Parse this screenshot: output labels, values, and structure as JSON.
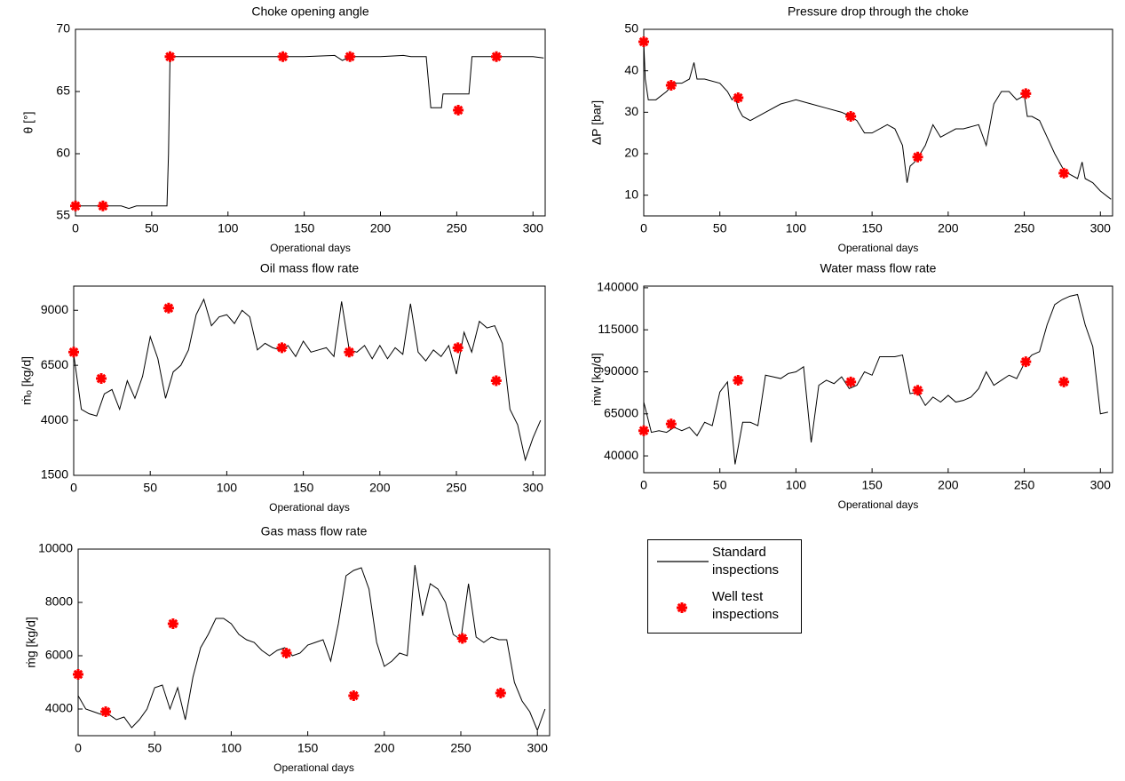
{
  "chart_data": [
    {
      "type": "line",
      "title": "Choke opening angle",
      "xlabel": "Operational days",
      "ylabel": "θ [°]",
      "xlim": [
        0,
        308
      ],
      "xticks": [
        0,
        50,
        100,
        150,
        200,
        250,
        300
      ],
      "ylim": [
        55,
        70
      ],
      "yticks": [
        55,
        60,
        65,
        70
      ],
      "grid": false,
      "series": [
        {
          "name": "Standard inspections",
          "type": "line",
          "color": "#000000",
          "x": [
            0,
            30,
            35,
            40,
            60,
            61,
            62,
            100,
            150,
            170,
            175,
            180,
            200,
            215,
            220,
            230,
            233,
            240,
            241,
            250,
            258,
            260,
            300,
            307
          ],
          "values": [
            55.8,
            55.8,
            55.6,
            55.8,
            55.8,
            60,
            67.8,
            67.8,
            67.8,
            67.9,
            67.5,
            67.8,
            67.8,
            67.9,
            67.8,
            67.8,
            63.7,
            63.7,
            64.8,
            64.8,
            64.8,
            67.8,
            67.8,
            67.7
          ]
        },
        {
          "name": "Well test inspections",
          "type": "scatter",
          "color": "#ff0000",
          "x": [
            0,
            18,
            62,
            136,
            180,
            251,
            276
          ],
          "values": [
            55.8,
            55.8,
            67.8,
            67.8,
            67.8,
            63.5,
            67.8
          ]
        }
      ]
    },
    {
      "type": "line",
      "title": "Pressure drop through the choke",
      "xlabel": "Operational days",
      "ylabel": "ΔP [bar]",
      "xlim": [
        0,
        308
      ],
      "xticks": [
        0,
        50,
        100,
        150,
        200,
        250,
        300
      ],
      "ylim": [
        5,
        50
      ],
      "yticks": [
        10,
        20,
        30,
        40,
        50
      ],
      "grid": false,
      "series": [
        {
          "name": "Standard inspections",
          "type": "line",
          "color": "#000000",
          "x": [
            0,
            1,
            3,
            8,
            15,
            20,
            25,
            30,
            33,
            35,
            40,
            50,
            55,
            58,
            60,
            62,
            65,
            70,
            80,
            90,
            100,
            110,
            120,
            130,
            136,
            140,
            145,
            150,
            160,
            165,
            170,
            173,
            175,
            178,
            180,
            185,
            190,
            195,
            200,
            205,
            210,
            220,
            225,
            230,
            235,
            240,
            245,
            250,
            252,
            255,
            260,
            265,
            270,
            276,
            280,
            285,
            288,
            290,
            295,
            300,
            307
          ],
          "values": [
            47,
            38,
            33,
            33,
            35,
            37,
            37,
            38,
            42,
            38,
            38,
            37,
            35,
            33,
            34,
            31,
            29,
            28,
            30,
            32,
            33,
            32,
            31,
            30,
            29,
            28,
            25,
            25,
            27,
            26,
            22,
            13,
            17,
            18,
            19,
            22,
            27,
            24,
            25,
            26,
            26,
            27,
            22,
            32,
            35,
            35,
            33,
            34,
            29,
            29,
            28,
            24,
            20,
            16,
            15,
            14,
            18,
            14,
            13,
            11,
            9
          ]
        },
        {
          "name": "Well test inspections",
          "type": "scatter",
          "color": "#ff0000",
          "x": [
            0,
            18,
            62,
            136,
            180,
            251,
            276
          ],
          "values": [
            47,
            36.5,
            33.5,
            29,
            19.2,
            34.5,
            15.3
          ]
        }
      ]
    },
    {
      "type": "line",
      "title": "Oil mass flow rate",
      "xlabel": "Operational days",
      "ylabel": "ṁₒ [kg/d]",
      "xlim": [
        0,
        308
      ],
      "xticks": [
        0,
        50,
        100,
        150,
        200,
        250,
        300
      ],
      "ylim": [
        1500,
        10100
      ],
      "yticks": [
        1500,
        4000,
        6500,
        9000
      ],
      "grid": false,
      "series": [
        {
          "name": "Standard inspections",
          "type": "line",
          "color": "#000000",
          "x": [
            0,
            5,
            10,
            15,
            20,
            25,
            30,
            35,
            40,
            45,
            50,
            55,
            60,
            65,
            70,
            75,
            80,
            85,
            90,
            95,
            100,
            105,
            110,
            115,
            120,
            125,
            130,
            135,
            140,
            145,
            150,
            155,
            160,
            165,
            170,
            175,
            180,
            185,
            190,
            195,
            200,
            205,
            210,
            215,
            220,
            225,
            230,
            235,
            240,
            245,
            250,
            255,
            260,
            265,
            270,
            275,
            280,
            285,
            290,
            295,
            300,
            305
          ],
          "values": [
            7000,
            4500,
            4300,
            4200,
            5200,
            5400,
            4500,
            5800,
            5000,
            6000,
            7800,
            6800,
            5000,
            6200,
            6500,
            7200,
            8800,
            9500,
            8300,
            8700,
            8800,
            8400,
            9000,
            8700,
            7200,
            7500,
            7300,
            7200,
            7400,
            6900,
            7600,
            7100,
            7200,
            7300,
            6900,
            9400,
            7200,
            7100,
            7400,
            6800,
            7400,
            6800,
            7300,
            7000,
            9300,
            7100,
            6700,
            7200,
            6900,
            7400,
            6100,
            8000,
            7100,
            8500,
            8200,
            8300,
            7500,
            4500,
            3800,
            2200,
            3200,
            4000
          ]
        },
        {
          "name": "Well test inspections",
          "type": "scatter",
          "color": "#ff0000",
          "x": [
            0,
            18,
            62,
            136,
            180,
            251,
            276
          ],
          "values": [
            7100,
            5900,
            9100,
            7300,
            7100,
            7300,
            5800
          ]
        }
      ]
    },
    {
      "type": "line",
      "title": "Water mass flow rate",
      "xlabel": "Operational days",
      "ylabel": "ṁw [kg/d]",
      "xlim": [
        0,
        308
      ],
      "xticks": [
        0,
        50,
        100,
        150,
        200,
        250,
        300
      ],
      "ylim": [
        30000,
        141000
      ],
      "yticks": [
        40000,
        65000,
        90000,
        115000,
        140000
      ],
      "grid": false,
      "series": [
        {
          "name": "Standard inspections",
          "type": "line",
          "color": "#000000",
          "x": [
            0,
            5,
            10,
            15,
            20,
            25,
            30,
            35,
            40,
            45,
            50,
            55,
            60,
            65,
            70,
            75,
            80,
            85,
            90,
            95,
            100,
            105,
            110,
            115,
            120,
            125,
            130,
            135,
            140,
            145,
            150,
            155,
            160,
            165,
            170,
            175,
            180,
            185,
            190,
            195,
            200,
            205,
            210,
            215,
            220,
            225,
            230,
            235,
            240,
            245,
            250,
            255,
            260,
            265,
            270,
            275,
            280,
            285,
            290,
            295,
            300,
            305
          ],
          "values": [
            72000,
            54000,
            55000,
            54000,
            57000,
            55000,
            57000,
            52000,
            60000,
            58000,
            78000,
            84000,
            35000,
            60000,
            60000,
            58000,
            88000,
            87000,
            86000,
            89000,
            90000,
            93000,
            48000,
            82000,
            85000,
            83000,
            87000,
            80000,
            82000,
            90000,
            88000,
            99000,
            99000,
            99000,
            100000,
            77000,
            78000,
            70000,
            75000,
            72000,
            76000,
            72000,
            73000,
            75000,
            80000,
            90000,
            82000,
            85000,
            88000,
            86000,
            95000,
            100000,
            102000,
            118000,
            130000,
            133000,
            135000,
            136000,
            118000,
            105000,
            65000,
            66000
          ]
        },
        {
          "name": "Well test inspections",
          "type": "scatter",
          "color": "#ff0000",
          "x": [
            0,
            18,
            62,
            136,
            180,
            251,
            276
          ],
          "values": [
            55000,
            59000,
            85000,
            84000,
            79000,
            96000,
            84000
          ]
        }
      ]
    },
    {
      "type": "line",
      "title": "Gas mass flow rate",
      "xlabel": "Operational days",
      "ylabel": "ṁg [kg/d]",
      "xlim": [
        0,
        308
      ],
      "xticks": [
        0,
        50,
        100,
        150,
        200,
        250,
        300
      ],
      "ylim": [
        3000,
        10000
      ],
      "yticks": [
        4000,
        6000,
        8000,
        10000
      ],
      "grid": false,
      "series": [
        {
          "name": "Standard inspections",
          "type": "line",
          "color": "#000000",
          "x": [
            0,
            5,
            10,
            15,
            20,
            25,
            30,
            35,
            40,
            45,
            50,
            55,
            60,
            65,
            70,
            75,
            80,
            85,
            90,
            95,
            100,
            105,
            110,
            115,
            120,
            125,
            130,
            135,
            140,
            145,
            150,
            155,
            160,
            165,
            170,
            175,
            180,
            185,
            190,
            195,
            200,
            205,
            210,
            215,
            220,
            225,
            230,
            235,
            240,
            245,
            250,
            255,
            260,
            265,
            270,
            275,
            280,
            285,
            290,
            295,
            300,
            305
          ],
          "values": [
            4500,
            4000,
            3900,
            3800,
            3800,
            3600,
            3700,
            3300,
            3600,
            4000,
            4800,
            4900,
            4000,
            4800,
            3600,
            5200,
            6300,
            6800,
            7400,
            7400,
            7200,
            6800,
            6600,
            6500,
            6200,
            6000,
            6200,
            6300,
            6000,
            6100,
            6400,
            6500,
            6600,
            5800,
            7200,
            9000,
            9200,
            9300,
            8500,
            6500,
            5600,
            5800,
            6100,
            6000,
            9400,
            7500,
            8700,
            8500,
            8000,
            6800,
            6600,
            8700,
            6700,
            6500,
            6700,
            6600,
            6600,
            5000,
            4300,
            3900,
            3200,
            4000
          ]
        },
        {
          "name": "Well test inspections",
          "type": "scatter",
          "color": "#ff0000",
          "x": [
            0,
            18,
            62,
            136,
            180,
            251,
            276
          ],
          "values": [
            5300,
            3900,
            7200,
            6100,
            4500,
            6650,
            4600
          ]
        }
      ]
    }
  ]
}
